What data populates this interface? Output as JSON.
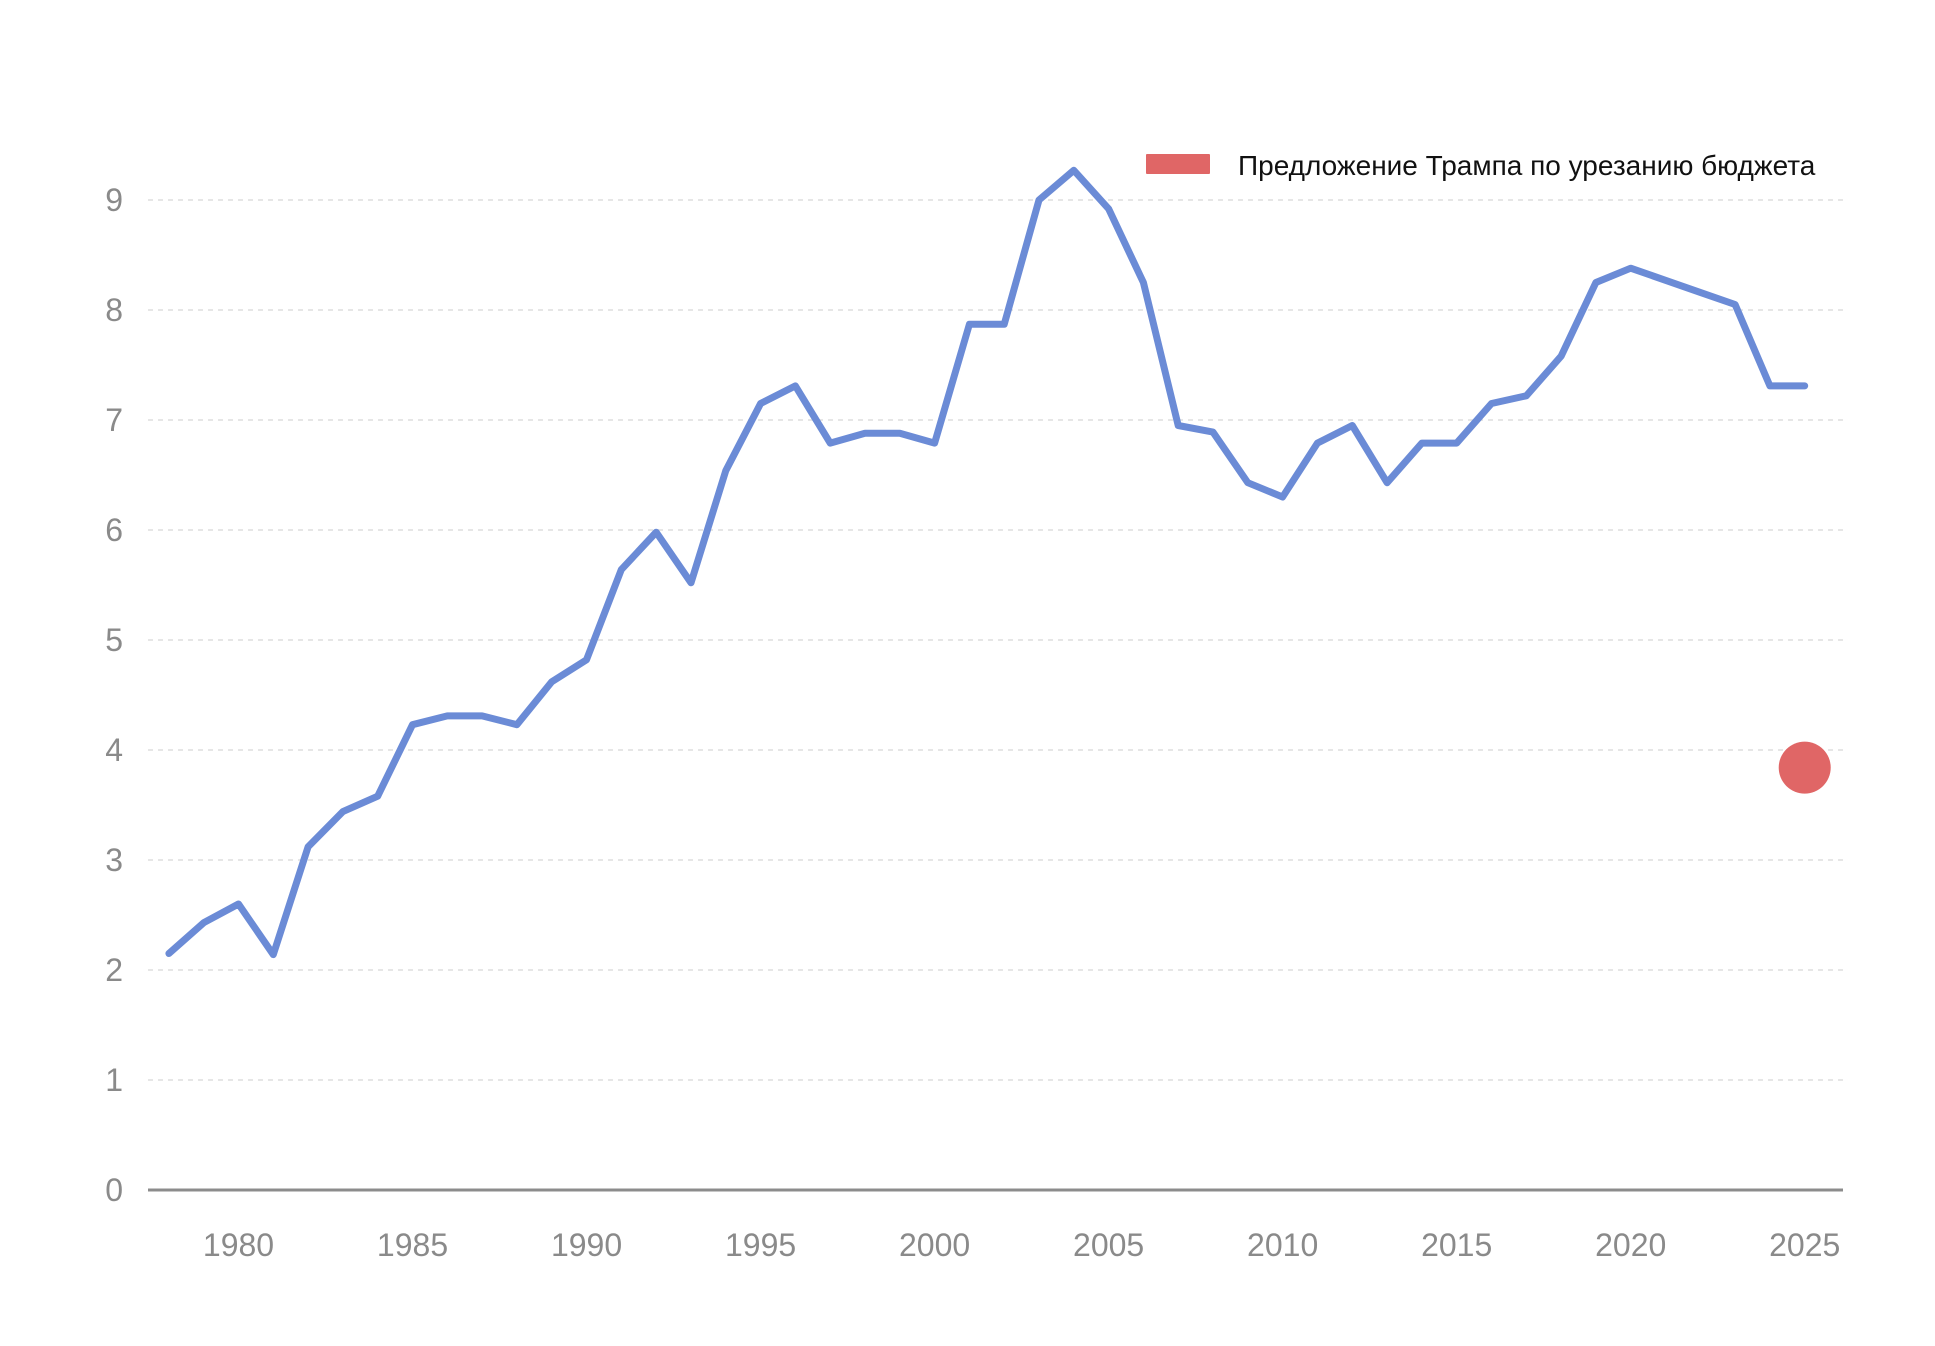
{
  "chart_data": {
    "type": "line",
    "title": "",
    "xlabel": "",
    "ylabel": "",
    "xlim": [
      1977.4,
      2026.1
    ],
    "ylim": [
      0,
      9
    ],
    "x_ticks": [
      1980,
      1985,
      1990,
      1995,
      2000,
      2005,
      2010,
      2015,
      2020,
      2025
    ],
    "y_ticks": [
      0,
      1,
      2,
      3,
      4,
      5,
      6,
      7,
      8,
      9
    ],
    "grid": "horizontal dashed",
    "legend_position": "top-right",
    "series": [
      {
        "type": "line",
        "color": "#6b8bd6",
        "points": [
          [
            1978,
            2.15
          ],
          [
            1979,
            2.43
          ],
          [
            1980,
            2.6
          ],
          [
            1981,
            2.14
          ],
          [
            1982,
            3.12
          ],
          [
            1983,
            3.44
          ],
          [
            1984,
            3.58
          ],
          [
            1985,
            4.23
          ],
          [
            1986,
            4.31
          ],
          [
            1987,
            4.31
          ],
          [
            1988,
            4.23
          ],
          [
            1989,
            4.62
          ],
          [
            1990,
            4.82
          ],
          [
            1991,
            5.64
          ],
          [
            1992,
            5.98
          ],
          [
            1993,
            5.52
          ],
          [
            1994,
            6.54
          ],
          [
            1995,
            7.15
          ],
          [
            1996,
            7.31
          ],
          [
            1997,
            6.79
          ],
          [
            1998,
            6.88
          ],
          [
            1999,
            6.88
          ],
          [
            2000,
            6.79
          ],
          [
            2001,
            7.87
          ],
          [
            2002,
            7.87
          ],
          [
            2003,
            9.0
          ],
          [
            2004,
            9.27
          ],
          [
            2005,
            8.92
          ],
          [
            2006,
            8.25
          ],
          [
            2007,
            6.95
          ],
          [
            2008,
            6.89
          ],
          [
            2009,
            6.43
          ],
          [
            2010,
            6.3
          ],
          [
            2011,
            6.79
          ],
          [
            2012,
            6.95
          ],
          [
            2013,
            6.43
          ],
          [
            2014,
            6.79
          ],
          [
            2015,
            6.79
          ],
          [
            2016,
            7.15
          ],
          [
            2017,
            7.22
          ],
          [
            2018,
            7.58
          ],
          [
            2019,
            8.25
          ],
          [
            2020,
            8.38
          ],
          [
            2021,
            8.27
          ],
          [
            2022,
            8.16
          ],
          [
            2023,
            8.05
          ],
          [
            2024,
            7.31
          ],
          [
            2025,
            7.31
          ]
        ]
      },
      {
        "type": "point",
        "name": "Предложение Трампа по урезанию бюджета",
        "color": "#e06666",
        "points": [
          [
            2025,
            3.84
          ]
        ]
      }
    ]
  }
}
